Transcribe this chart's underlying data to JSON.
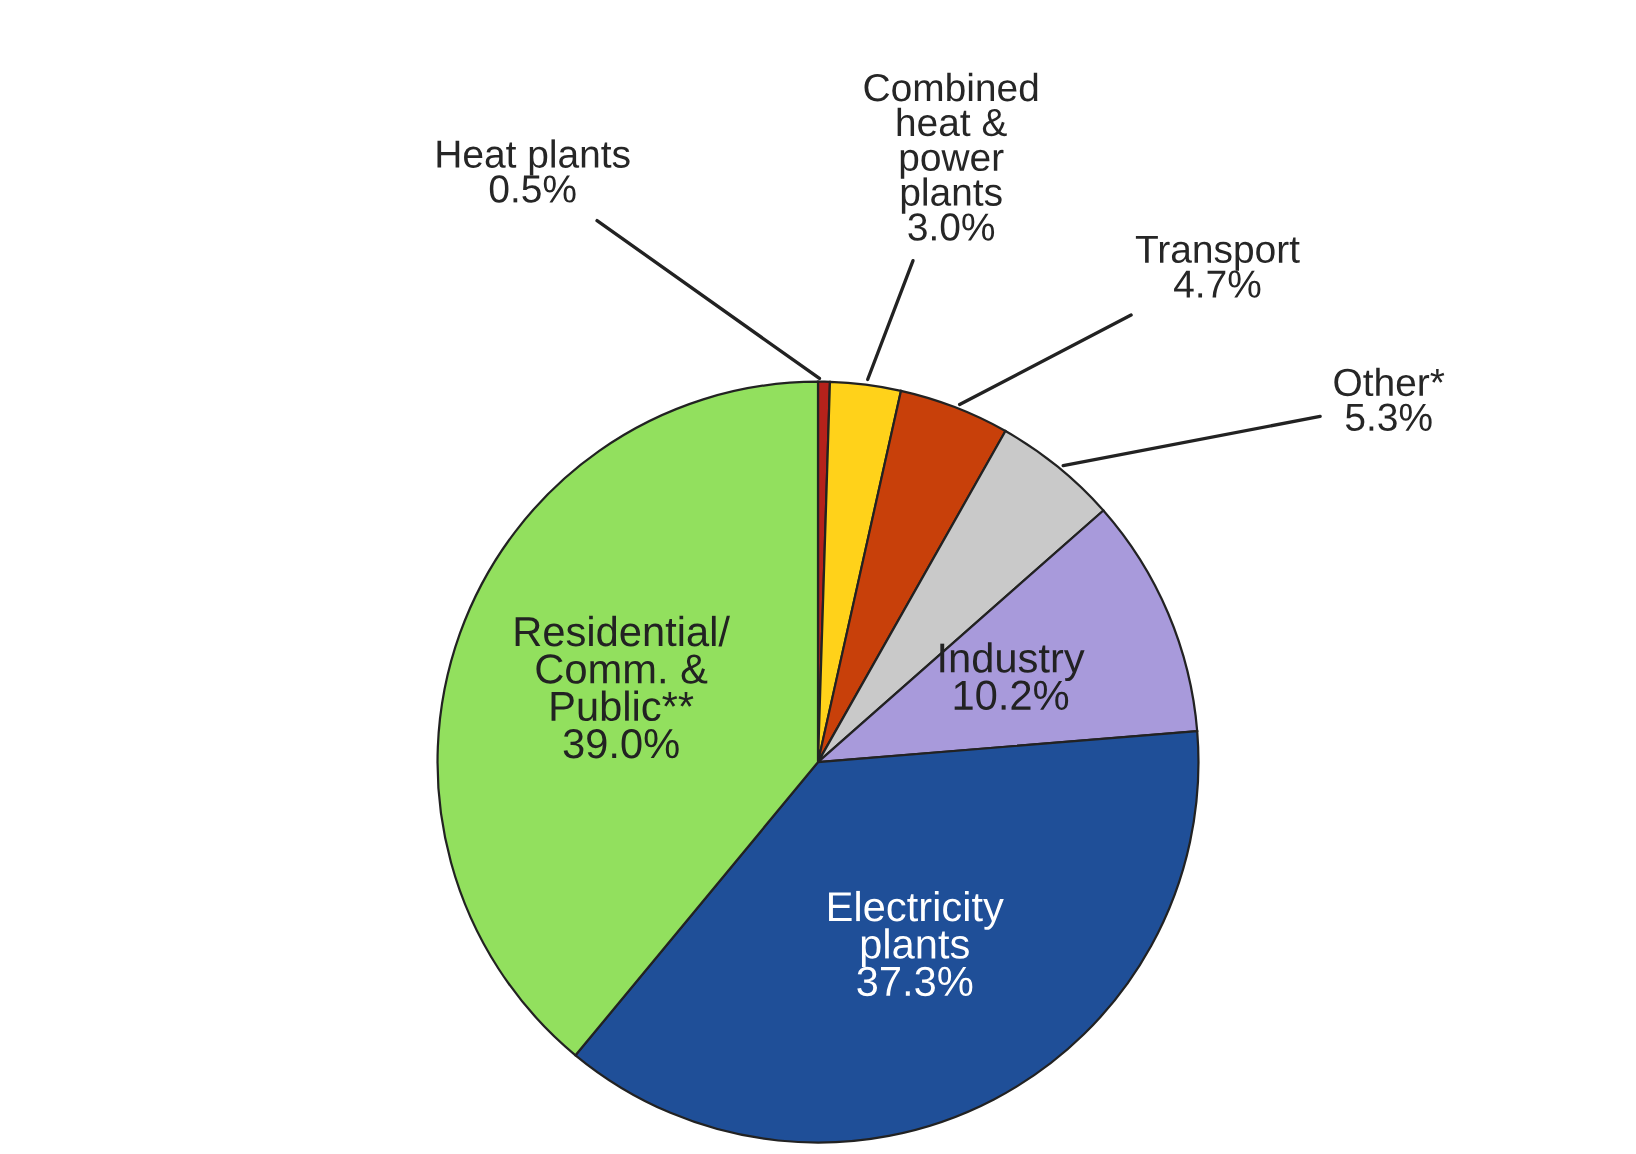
{
  "chart_data": {
    "type": "pie",
    "categories": [
      "Heat plants",
      "Combined\nheat &\npower\nplants",
      "Transport",
      "Other*",
      "Industry",
      "Electricity\nplants",
      "Residential/\nComm. &\nPublic**"
    ],
    "values": [
      0.5,
      3.0,
      4.7,
      5.3,
      10.2,
      37.3,
      39.0
    ],
    "value_labels": [
      "0.5%",
      "3.0%",
      "4.7%",
      "5.3%",
      "10.2%",
      "37.3%",
      "39.0%"
    ],
    "colors": [
      "#b5221b",
      "#ffd21a",
      "#c8400a",
      "#c9c9c9",
      "#a89adb",
      "#1f4f98",
      "#92e05e"
    ],
    "legend": false
  }
}
